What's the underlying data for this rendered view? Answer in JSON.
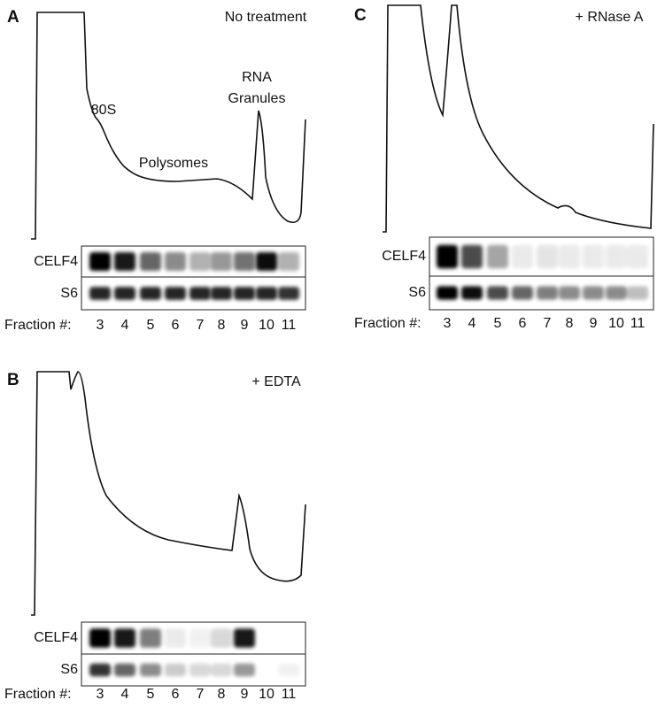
{
  "panels": [
    {
      "letter": "A",
      "condition": "No treatment",
      "annotations": [
        "80S",
        "Polysomes",
        "RNA",
        "Granules"
      ],
      "blots": [
        "CELF4",
        "S6"
      ],
      "fraction_label": "Fraction #:",
      "fractions": [
        "3",
        "4",
        "5",
        "6",
        "7",
        "8",
        "9",
        "10",
        "11"
      ]
    },
    {
      "letter": "B",
      "condition": "+ EDTA",
      "annotations": [],
      "blots": [
        "CELF4",
        "S6"
      ],
      "fraction_label": "Fraction #:",
      "fractions": [
        "3",
        "4",
        "5",
        "6",
        "7",
        "8",
        "9",
        "10",
        "11"
      ]
    },
    {
      "letter": "C",
      "condition": "+ RNase A",
      "annotations": [],
      "blots": [
        "CELF4",
        "S6"
      ],
      "fraction_label": "Fraction #:",
      "fractions": [
        "3",
        "4",
        "5",
        "6",
        "7",
        "8",
        "9",
        "10",
        "11"
      ]
    }
  ]
}
